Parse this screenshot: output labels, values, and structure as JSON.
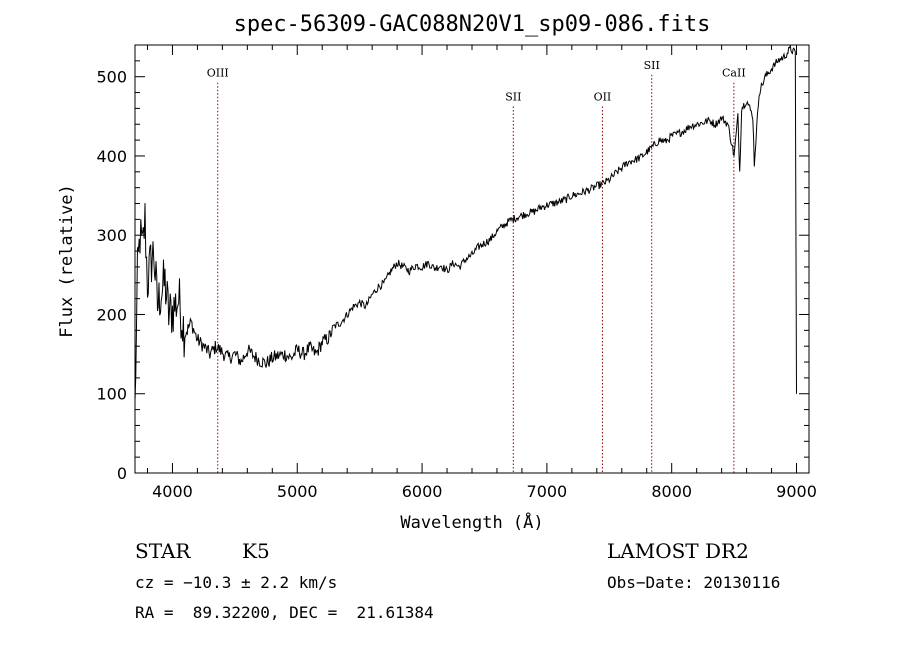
{
  "chart_data": {
    "type": "line",
    "title": "spec-56309-GAC088N20V1_sp09-086.fits",
    "xlabel": "Wavelength (Å)",
    "ylabel": "Flux (relative)",
    "xlim": [
      3700,
      9100
    ],
    "ylim": [
      0,
      540
    ],
    "xticks": [
      4000,
      5000,
      6000,
      7000,
      8000,
      9000
    ],
    "yticks": [
      0,
      100,
      200,
      300,
      400,
      500
    ],
    "grid": false,
    "line_color": "#000000",
    "marker_color": "#8b0000",
    "lines": [
      {
        "name": "OIII",
        "x": 4363,
        "label_y": 500
      },
      {
        "name": "SII",
        "x": 6731,
        "label_y": 470
      },
      {
        "name": "OII",
        "x": 7445,
        "label_y": 470
      },
      {
        "name": "SII",
        "x": 7840,
        "label_y": 510
      },
      {
        "name": "CaII",
        "x": 8498,
        "label_y": 500
      }
    ],
    "series": [
      {
        "x": [
          3700,
          3720,
          3740,
          3760,
          3780,
          3800,
          3820,
          3850,
          3880,
          3910,
          3940,
          3970,
          4000,
          4050,
          4100,
          4150,
          4200,
          4250,
          4300,
          4350,
          4400,
          4450,
          4500,
          4550,
          4600,
          4650,
          4700,
          4750,
          4800,
          4850,
          4900,
          4950,
          5000,
          5050,
          5100,
          5150,
          5200,
          5250,
          5300,
          5350,
          5400,
          5450,
          5500,
          5550,
          5600,
          5650,
          5700,
          5750,
          5800,
          5850,
          5900,
          5950,
          6000,
          6050,
          6100,
          6150,
          6200,
          6250,
          6300,
          6350,
          6400,
          6450,
          6500,
          6550,
          6600,
          6650,
          6700,
          6750,
          6800,
          6850,
          6900,
          6950,
          7000,
          7050,
          7100,
          7150,
          7200,
          7250,
          7300,
          7350,
          7400,
          7450,
          7500,
          7550,
          7600,
          7650,
          7700,
          7750,
          7800,
          7850,
          7900,
          7950,
          8000,
          8050,
          8100,
          8150,
          8200,
          8250,
          8300,
          8350,
          8400,
          8450,
          8500,
          8530,
          8545,
          8560,
          8600,
          8650,
          8662,
          8700,
          8750,
          8800,
          8850,
          8900,
          8950,
          8990,
          9000
        ],
        "y": [
          80,
          250,
          300,
          280,
          320,
          240,
          260,
          280,
          210,
          230,
          240,
          200,
          205,
          220,
          175,
          190,
          168,
          160,
          150,
          160,
          152,
          145,
          150,
          140,
          155,
          148,
          142,
          138,
          145,
          148,
          150,
          145,
          155,
          150,
          158,
          150,
          165,
          170,
          185,
          190,
          200,
          210,
          215,
          210,
          225,
          235,
          240,
          255,
          265,
          260,
          255,
          262,
          260,
          265,
          258,
          262,
          255,
          265,
          260,
          270,
          275,
          285,
          290,
          295,
          305,
          312,
          318,
          322,
          325,
          328,
          330,
          335,
          338,
          340,
          342,
          345,
          350,
          352,
          355,
          358,
          362,
          365,
          370,
          378,
          385,
          392,
          395,
          398,
          405,
          412,
          420,
          418,
          425,
          428,
          432,
          438,
          440,
          442,
          445,
          440,
          448,
          440,
          400,
          450,
          380,
          460,
          470,
          450,
          390,
          480,
          500,
          510,
          520,
          525,
          535,
          530,
          100
        ]
      }
    ]
  },
  "footer": {
    "object_class": "STAR",
    "subclass": "K5",
    "survey": "LAMOST DR2",
    "cz": "cz = −10.3 ± 2.2 km/s",
    "obs_date": "Obs−Date: 20130116",
    "coords": "RA =  89.32200, DEC =  21.61384"
  }
}
